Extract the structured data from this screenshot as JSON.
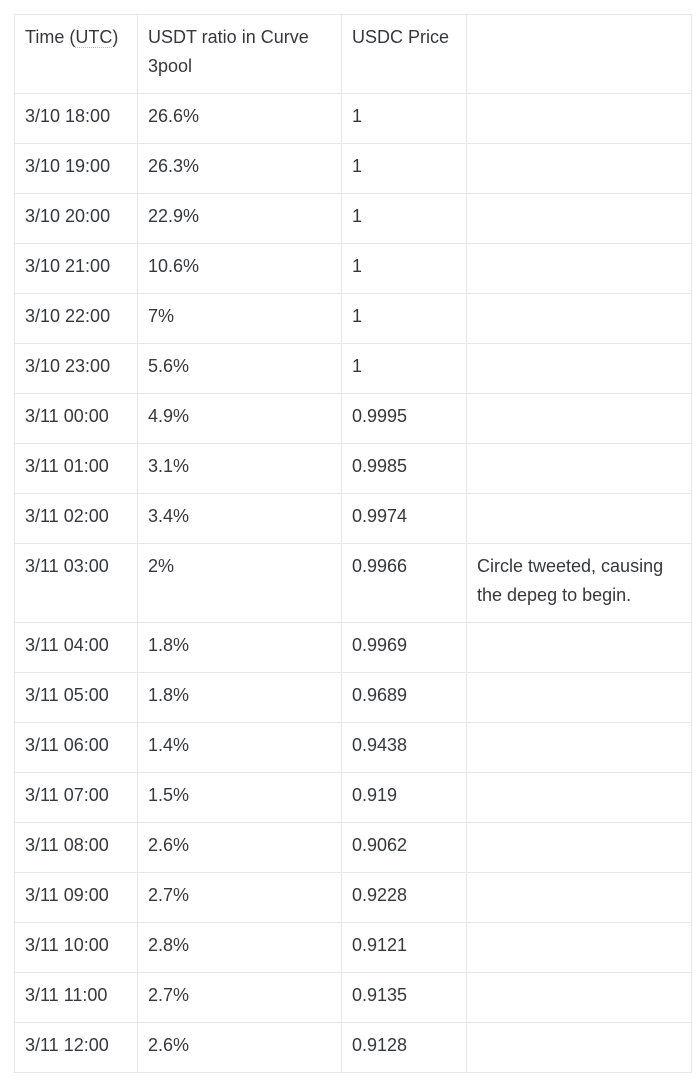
{
  "theme": {
    "text_color": "#35383c",
    "border_color": "#e7e7e5",
    "abbr_underline_color": "#b9b8b5",
    "background_color": "#ffffff"
  },
  "table": {
    "header": {
      "time_prefix": "Time (",
      "time_abbr": "UTC",
      "time_suffix": ")",
      "ratio": "USDT ratio in Curve 3pool",
      "price": "USDC Price",
      "notes": ""
    },
    "rows": [
      {
        "time": "3/10 18:00",
        "ratio": "26.6%",
        "price": "1",
        "note": ""
      },
      {
        "time": "3/10 19:00",
        "ratio": "26.3%",
        "price": "1",
        "note": ""
      },
      {
        "time": "3/10 20:00",
        "ratio": "22.9%",
        "price": "1",
        "note": ""
      },
      {
        "time": "3/10 21:00",
        "ratio": "10.6%",
        "price": "1",
        "note": ""
      },
      {
        "time": "3/10 22:00",
        "ratio": "7%",
        "price": "1",
        "note": ""
      },
      {
        "time": "3/10 23:00",
        "ratio": "5.6%",
        "price": "1",
        "note": ""
      },
      {
        "time": "3/11 00:00",
        "ratio": "4.9%",
        "price": "0.9995",
        "note": ""
      },
      {
        "time": "3/11 01:00",
        "ratio": "3.1%",
        "price": "0.9985",
        "note": ""
      },
      {
        "time": "3/11 02:00",
        "ratio": "3.4%",
        "price": "0.9974",
        "note": ""
      },
      {
        "time": "3/11 03:00",
        "ratio": "2%",
        "price": "0.9966",
        "note": "Circle tweeted, causing the depeg to begin."
      },
      {
        "time": "3/11 04:00",
        "ratio": "1.8%",
        "price": "0.9969",
        "note": ""
      },
      {
        "time": "3/11 05:00",
        "ratio": "1.8%",
        "price": "0.9689",
        "note": ""
      },
      {
        "time": "3/11 06:00",
        "ratio": "1.4%",
        "price": "0.9438",
        "note": ""
      },
      {
        "time": "3/11 07:00",
        "ratio": "1.5%",
        "price": "0.919",
        "note": ""
      },
      {
        "time": "3/11 08:00",
        "ratio": "2.6%",
        "price": "0.9062",
        "note": ""
      },
      {
        "time": "3/11 09:00",
        "ratio": "2.7%",
        "price": "0.9228",
        "note": ""
      },
      {
        "time": "3/11 10:00",
        "ratio": "2.8%",
        "price": "0.9121",
        "note": ""
      },
      {
        "time": "3/11 11:00",
        "ratio": "2.7%",
        "price": "0.9135",
        "note": ""
      },
      {
        "time": "3/11 12:00",
        "ratio": "2.6%",
        "price": "0.9128",
        "note": ""
      }
    ]
  }
}
